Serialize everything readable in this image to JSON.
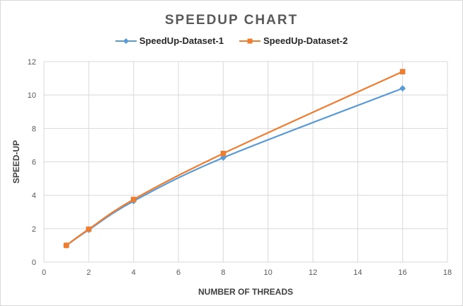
{
  "chart_data": {
    "type": "line",
    "title": "SPEEDUP CHART",
    "xlabel": "NUMBER OF THREADS",
    "ylabel": "SPEED-UP",
    "xlim": [
      0,
      18
    ],
    "ylim": [
      0,
      12
    ],
    "xticks": [
      "0",
      "2",
      "4",
      "6",
      "8",
      "10",
      "12",
      "14",
      "16",
      "18"
    ],
    "yticks": [
      "0",
      "2",
      "4",
      "6",
      "8",
      "10",
      "12"
    ],
    "grid": true,
    "legend_position": "top",
    "series": [
      {
        "name": "SpeedUp-Dataset-1",
        "color": "#5b9bd5",
        "marker": "diamond",
        "x": [
          1,
          2,
          4,
          8,
          16
        ],
        "y": [
          1.0,
          1.93,
          3.65,
          6.25,
          10.4
        ]
      },
      {
        "name": "SpeedUp-Dataset-2",
        "color": "#ed7d31",
        "marker": "square",
        "x": [
          1,
          2,
          4,
          8,
          16
        ],
        "y": [
          1.0,
          1.97,
          3.75,
          6.5,
          11.4
        ]
      }
    ]
  }
}
